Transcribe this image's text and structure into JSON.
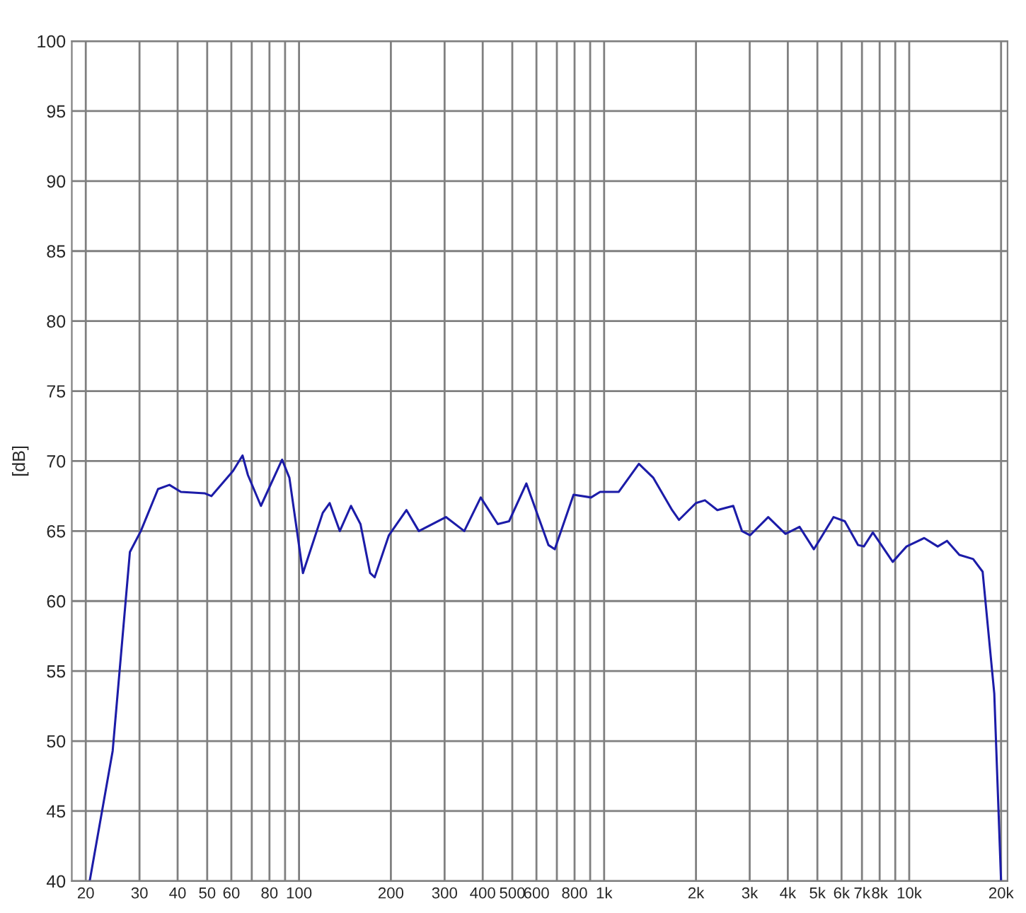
{
  "chart_data": {
    "type": "line",
    "ylabel": "[dB]",
    "log": "x",
    "grid": true,
    "marker": "none",
    "line_style": "solid",
    "xlim": [
      18,
      21000
    ],
    "ylim": [
      40,
      100
    ],
    "yticks": [
      40,
      45,
      50,
      55,
      60,
      65,
      70,
      75,
      80,
      85,
      90,
      95,
      100
    ],
    "xticks": [
      20,
      30,
      40,
      50,
      60,
      {
        "value": 70,
        "label": null
      },
      80,
      {
        "value": 90,
        "label": null
      },
      100,
      200,
      300,
      400,
      500,
      600,
      {
        "value": 700,
        "label": null
      },
      800,
      {
        "value": 900,
        "label": null
      },
      {
        "value": 1000,
        "label": "1k"
      },
      {
        "value": 2000,
        "label": "2k"
      },
      {
        "value": 3000,
        "label": "3k"
      },
      {
        "value": 4000,
        "label": "4k"
      },
      {
        "value": 5000,
        "label": "5k"
      },
      {
        "value": 6000,
        "label": "6k"
      },
      {
        "value": 7000,
        "label": "7k"
      },
      {
        "value": 8000,
        "label": "8k"
      },
      {
        "value": 9000,
        "label": null
      },
      {
        "value": 10000,
        "label": "10k"
      },
      {
        "value": 20000,
        "label": "20k"
      }
    ],
    "series": [
      {
        "color": "#1c1ca8",
        "x": [
          20.6,
          24.5,
          27.9,
          30.3,
          34.5,
          37.6,
          41,
          49,
          51.6,
          60.8,
          65.3,
          68,
          75,
          88,
          93,
          103,
          119.6,
          126,
          136,
          148,
          159,
          171,
          177,
          197,
          225,
          247,
          303,
          348,
          394,
          448,
          488,
          556,
          657,
          689,
          794,
          906,
          970,
          1117,
          1300,
          1450,
          1670,
          1760,
          2000,
          2140,
          2350,
          2650,
          2830,
          3010,
          3450,
          3930,
          4370,
          4870,
          5650,
          6150,
          6800,
          7100,
          7600,
          8830,
          9800,
          11200,
          12400,
          13300,
          14600,
          16200,
          17400,
          19000,
          20000
        ],
        "values": [
          40,
          49.3,
          63.5,
          65,
          68,
          68.3,
          67.8,
          67.7,
          67.5,
          69.3,
          70.4,
          69,
          66.8,
          70.1,
          68.8,
          62,
          66.3,
          67,
          65,
          66.8,
          65.5,
          62,
          61.7,
          64.7,
          66.5,
          65,
          66,
          65,
          67.4,
          65.5,
          65.7,
          68.4,
          64,
          63.7,
          67.6,
          67.4,
          67.8,
          67.8,
          69.8,
          68.8,
          66.5,
          65.8,
          67,
          67.2,
          66.5,
          66.8,
          65,
          64.7,
          66,
          64.8,
          65.3,
          63.7,
          66,
          65.7,
          64,
          63.9,
          64.9,
          62.8,
          63.9,
          64.5,
          63.9,
          64.3,
          63.3,
          63,
          62.1,
          53.4,
          40
        ]
      }
    ]
  }
}
